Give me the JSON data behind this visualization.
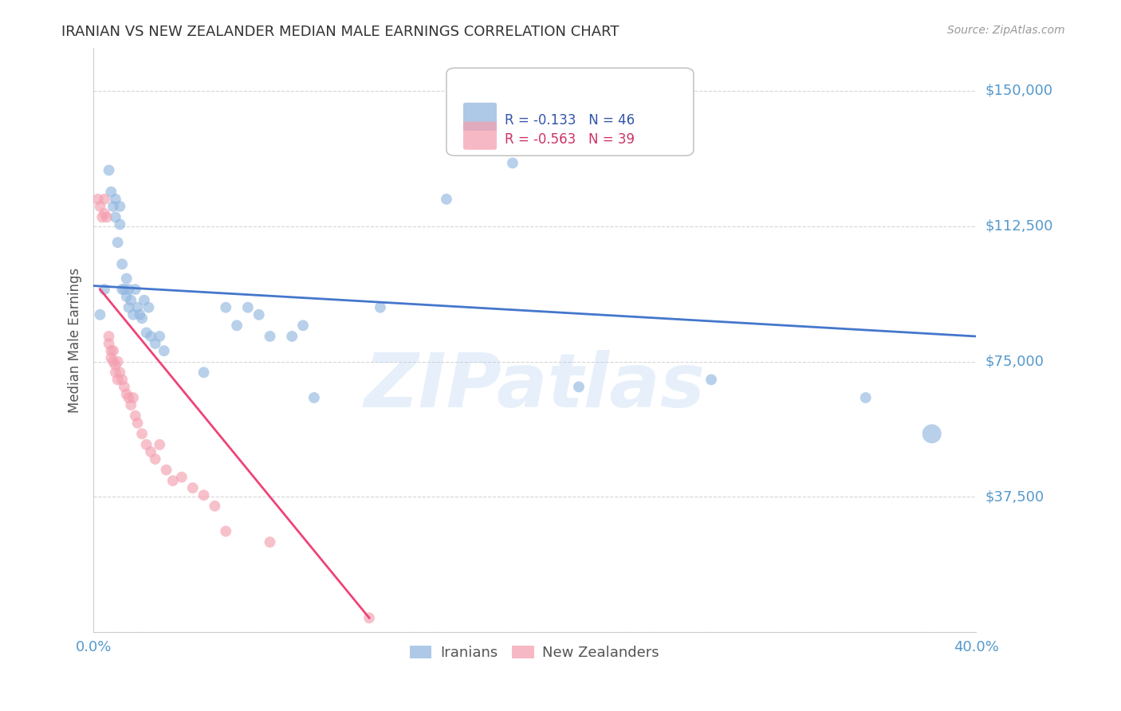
{
  "title": "IRANIAN VS NEW ZEALANDER MEDIAN MALE EARNINGS CORRELATION CHART",
  "source": "Source: ZipAtlas.com",
  "ylabel": "Median Male Earnings",
  "yticks": [
    0,
    37500,
    75000,
    112500,
    150000
  ],
  "ytick_labels": [
    "",
    "$37,500",
    "$75,000",
    "$112,500",
    "$150,000"
  ],
  "ylim": [
    0,
    162000
  ],
  "xlim": [
    0.0,
    0.4
  ],
  "watermark": "ZIPatlas",
  "legend_blue_r": "-0.133",
  "legend_blue_n": "46",
  "legend_pink_r": "-0.563",
  "legend_pink_n": "39",
  "legend_label_blue": "Iranians",
  "legend_label_pink": "New Zealanders",
  "blue_color": "#93B8E0",
  "pink_color": "#F4A0B0",
  "blue_line_color": "#4477CC",
  "pink_line_color": "#EE4477",
  "background_color": "#FFFFFF",
  "grid_color": "#CCCCCC",
  "axis_label_color": "#5599CC",
  "title_color": "#333333",
  "iranians_x": [
    0.003,
    0.005,
    0.007,
    0.008,
    0.009,
    0.01,
    0.01,
    0.011,
    0.012,
    0.012,
    0.013,
    0.013,
    0.014,
    0.015,
    0.015,
    0.016,
    0.016,
    0.017,
    0.018,
    0.019,
    0.02,
    0.021,
    0.022,
    0.023,
    0.024,
    0.025,
    0.026,
    0.028,
    0.03,
    0.032,
    0.05,
    0.06,
    0.065,
    0.07,
    0.075,
    0.08,
    0.09,
    0.095,
    0.1,
    0.13,
    0.16,
    0.19,
    0.22,
    0.28,
    0.35,
    0.38
  ],
  "iranians_y": [
    88000,
    95000,
    128000,
    122000,
    118000,
    115000,
    120000,
    108000,
    113000,
    118000,
    95000,
    102000,
    95000,
    93000,
    98000,
    90000,
    95000,
    92000,
    88000,
    95000,
    90000,
    88000,
    87000,
    92000,
    83000,
    90000,
    82000,
    80000,
    82000,
    78000,
    72000,
    90000,
    85000,
    90000,
    88000,
    82000,
    82000,
    85000,
    65000,
    90000,
    120000,
    130000,
    68000,
    70000,
    65000,
    55000
  ],
  "iranians_sizes": [
    100,
    100,
    100,
    100,
    100,
    100,
    100,
    100,
    100,
    100,
    100,
    100,
    100,
    100,
    100,
    100,
    100,
    100,
    100,
    100,
    100,
    100,
    100,
    100,
    100,
    100,
    100,
    100,
    100,
    100,
    100,
    100,
    100,
    100,
    100,
    100,
    100,
    100,
    100,
    100,
    100,
    100,
    100,
    100,
    100,
    300
  ],
  "new_zealanders_x": [
    0.002,
    0.003,
    0.004,
    0.005,
    0.005,
    0.006,
    0.007,
    0.007,
    0.008,
    0.008,
    0.009,
    0.009,
    0.01,
    0.01,
    0.011,
    0.011,
    0.012,
    0.013,
    0.014,
    0.015,
    0.016,
    0.017,
    0.018,
    0.019,
    0.02,
    0.022,
    0.024,
    0.026,
    0.028,
    0.03,
    0.033,
    0.036,
    0.04,
    0.045,
    0.05,
    0.055,
    0.06,
    0.08,
    0.125
  ],
  "new_zealanders_y": [
    120000,
    118000,
    115000,
    116000,
    120000,
    115000,
    80000,
    82000,
    78000,
    76000,
    75000,
    78000,
    74000,
    72000,
    70000,
    75000,
    72000,
    70000,
    68000,
    66000,
    65000,
    63000,
    65000,
    60000,
    58000,
    55000,
    52000,
    50000,
    48000,
    52000,
    45000,
    42000,
    43000,
    40000,
    38000,
    35000,
    28000,
    25000,
    4000
  ],
  "new_zealanders_sizes": [
    100,
    100,
    100,
    100,
    100,
    100,
    100,
    100,
    100,
    100,
    100,
    100,
    100,
    100,
    100,
    100,
    100,
    100,
    100,
    100,
    100,
    100,
    100,
    100,
    100,
    100,
    100,
    100,
    100,
    100,
    100,
    100,
    100,
    100,
    100,
    100,
    100,
    100,
    100
  ],
  "blue_trend_x": [
    0.0,
    0.4
  ],
  "blue_trend_y": [
    96000,
    82000
  ],
  "pink_trend_x": [
    0.003,
    0.125
  ],
  "pink_trend_y": [
    95000,
    4000
  ]
}
